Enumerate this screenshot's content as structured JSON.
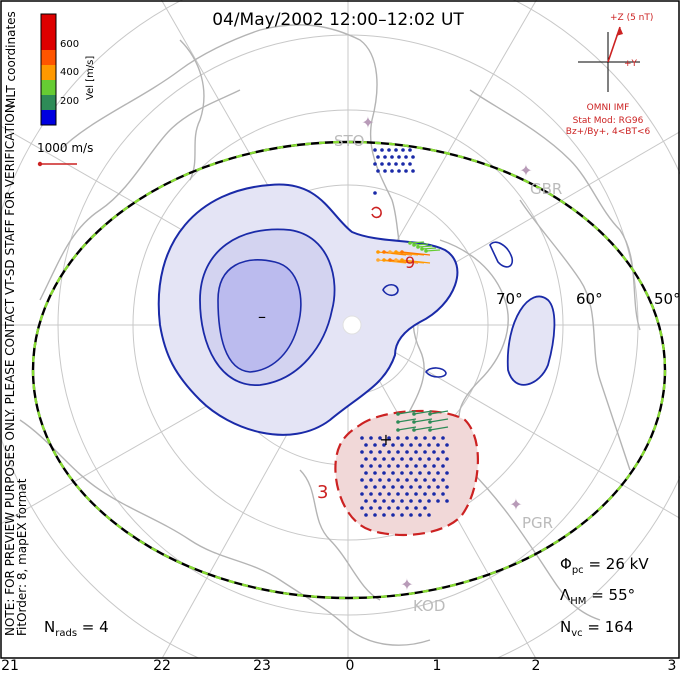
{
  "title": "04/May/2002 12:00–12:02 UT",
  "chart_data": {
    "type": "polar-convection-map",
    "coordinates": "MLT coordinates",
    "velocity_scale": {
      "label": "Vel [m/s]",
      "ticks": [
        "200",
        "400",
        "600"
      ],
      "colors": [
        "#0000e0",
        "#2e8b57",
        "#66cc33",
        "#ff9900",
        "#ff5500",
        "#dd0000"
      ]
    },
    "vector_scale_label": "1000 m/s",
    "latitude_labels": [
      "70°",
      "60°",
      "50°"
    ],
    "mlt_ticks": [
      "21",
      "22",
      "23",
      "0",
      "1",
      "2",
      "3"
    ],
    "stations": [
      "STO",
      "GBR",
      "PGR",
      "KOD"
    ],
    "imf": {
      "z_label": "+Z (5 nT)",
      "y_label": "+Y",
      "source": "OMNI IMF",
      "stat_mod": "Stat Mod: RG96",
      "bin": "Bz+/By+, 4<BT<6"
    },
    "contour_labels": [
      "9",
      "3"
    ],
    "extrema_markers": [
      "–",
      "+"
    ],
    "stats": {
      "phi_symbol": "Φ",
      "phi_sub": "pc",
      "phi_value": " =  26 kV",
      "lambda_symbol": "Λ",
      "lambda_sub": "HM",
      "lambda_value": " =  55°",
      "nvc_symbol": "N",
      "nvc_sub": "vc",
      "nvc_value": " =  164",
      "nrads_symbol": "N",
      "nrads_sub": "rads",
      "nrads_value": " =  4"
    },
    "side_text": [
      "NOTE: FOR PREVIEW PURPOSES ONLY. PLEASE CONTACT VT-SD STAFF FOR VERIFICATION.",
      "FitOrder: 8,  mapEX format"
    ],
    "grid": true
  }
}
